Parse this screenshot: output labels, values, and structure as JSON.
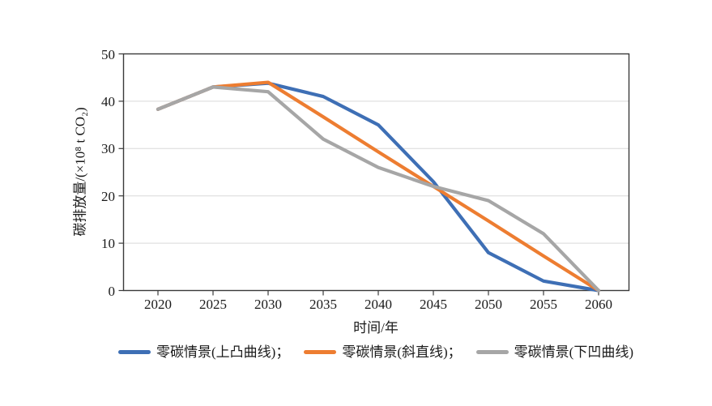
{
  "chart_data": {
    "type": "line",
    "title": "",
    "xlabel": "时间/年",
    "ylabel": "碳排放量/(×10⁸ t CO₂)",
    "x": [
      2020,
      2025,
      2030,
      2035,
      2040,
      2045,
      2050,
      2055,
      2060
    ],
    "ylim": [
      0,
      50
    ],
    "yticks": [
      0,
      10,
      20,
      30,
      40,
      50
    ],
    "grid": "horizontal",
    "legend_position": "bottom",
    "series": [
      {
        "name": "零碳情景(上凸曲线)",
        "color": "#3E6FB5",
        "values": [
          38.3,
          43,
          43.8,
          41,
          35,
          23,
          8,
          2,
          0
        ]
      },
      {
        "name": "零碳情景(斜直线)",
        "color": "#ED7D31",
        "values": [
          38.3,
          43,
          44,
          36.7,
          29.3,
          22,
          14.7,
          7.3,
          0
        ]
      },
      {
        "name": "零碳情景(下凹曲线)",
        "color": "#A6A6A6",
        "values": [
          38.3,
          43,
          42,
          32,
          26,
          22,
          19,
          12,
          0
        ]
      }
    ]
  },
  "axes": {
    "x_title": "时间/年",
    "y_title": "碳排放量/(×10⁸ t CO₂)"
  },
  "legend": {
    "items": [
      {
        "label": "零碳情景(上凸曲线)；"
      },
      {
        "label": "零碳情景(斜直线)；"
      },
      {
        "label": "零碳情景(下凹曲线)"
      }
    ]
  }
}
